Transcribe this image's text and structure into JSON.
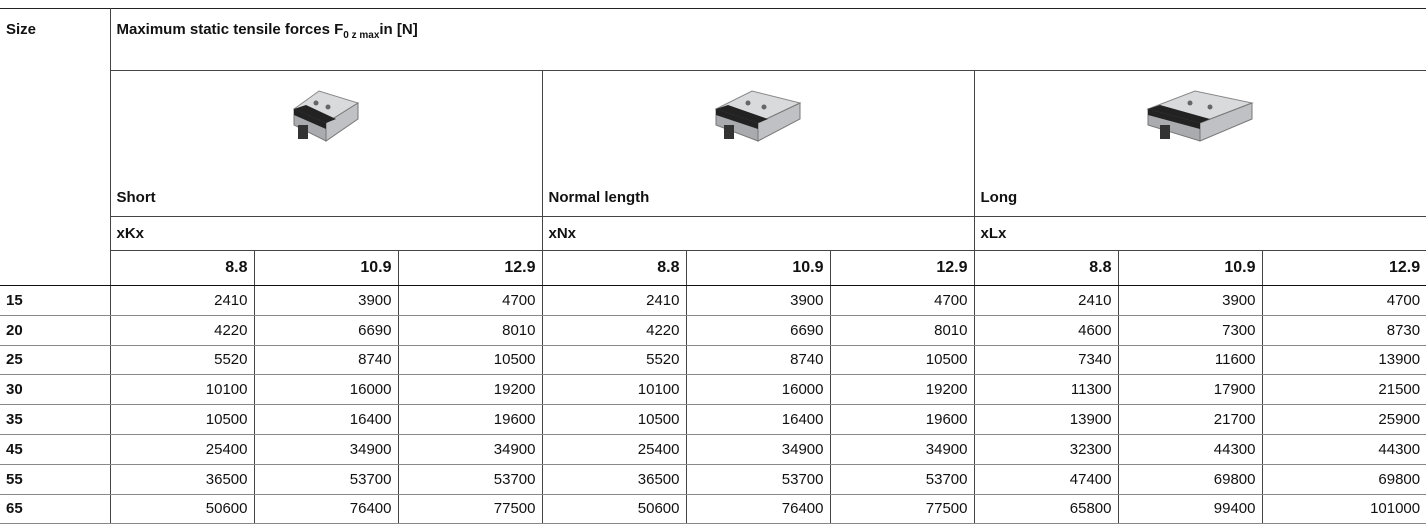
{
  "header": {
    "size": "Size",
    "title": "Maximum static tensile forces F",
    "title_sub": "0 z max",
    "title_unit": "in [N]"
  },
  "groups": [
    {
      "label": "Short",
      "code": "xKx",
      "grades": [
        "8.8",
        "10.9",
        "12.9"
      ]
    },
    {
      "label": "Normal length",
      "code": "xNx",
      "grades": [
        "8.8",
        "10.9",
        "12.9"
      ]
    },
    {
      "label": "Long",
      "code": "xLx",
      "grades": [
        "8.8",
        "10.9",
        "12.9"
      ]
    }
  ],
  "rows": [
    {
      "size": "15",
      "values": [
        2410,
        3900,
        4700,
        2410,
        3900,
        4700,
        2410,
        3900,
        4700
      ]
    },
    {
      "size": "20",
      "values": [
        4220,
        6690,
        8010,
        4220,
        6690,
        8010,
        4600,
        7300,
        8730
      ]
    },
    {
      "size": "25",
      "values": [
        5520,
        8740,
        10500,
        5520,
        8740,
        10500,
        7340,
        11600,
        13900
      ]
    },
    {
      "size": "30",
      "values": [
        10100,
        16000,
        19200,
        10100,
        16000,
        19200,
        11300,
        17900,
        21500
      ]
    },
    {
      "size": "35",
      "values": [
        10500,
        16400,
        19600,
        10500,
        16400,
        19600,
        13900,
        21700,
        25900
      ]
    },
    {
      "size": "45",
      "values": [
        25400,
        34900,
        34900,
        25400,
        34900,
        34900,
        32300,
        44300,
        44300
      ]
    },
    {
      "size": "55",
      "values": [
        36500,
        53700,
        53700,
        36500,
        53700,
        53700,
        47400,
        69800,
        69800
      ]
    },
    {
      "size": "65",
      "values": [
        50600,
        76400,
        77500,
        50600,
        76400,
        77500,
        65800,
        99400,
        101000
      ]
    }
  ]
}
